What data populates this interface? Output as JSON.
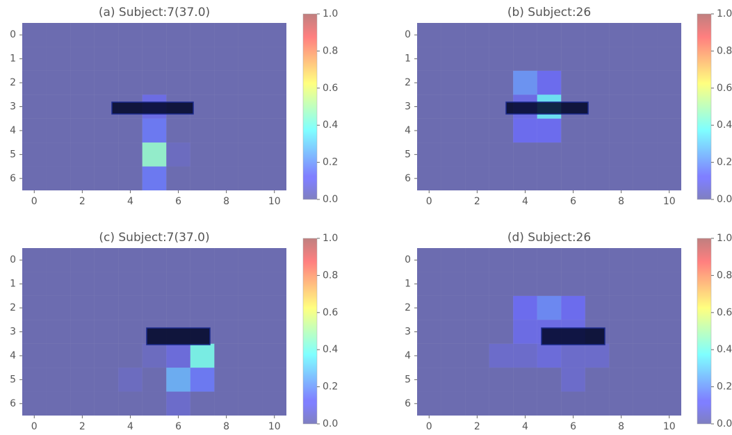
{
  "chart_data": [
    {
      "type": "heatmap",
      "title": "(a) Subject:7(37.0)",
      "xlim": [
        -0.5,
        10.5
      ],
      "ylim": [
        6.5,
        -0.5
      ],
      "xticks": [
        0,
        2,
        4,
        6,
        8,
        10
      ],
      "yticks": [
        0,
        1,
        2,
        3,
        4,
        5,
        6
      ],
      "clim": [
        0,
        1
      ],
      "cticks": [
        {
          "value": 0,
          "label": "0.0"
        },
        0.2,
        0.4,
        0.6,
        0.8,
        {
          "value": 1,
          "label": "1.0"
        }
      ],
      "colormap": "jet",
      "values": [
        [
          0,
          0,
          0,
          0,
          0,
          0,
          0,
          0,
          0,
          0,
          0
        ],
        [
          0,
          0,
          0,
          0,
          0,
          0,
          0,
          0,
          0,
          0,
          0
        ],
        [
          0,
          0,
          0,
          0,
          0,
          0,
          0,
          0,
          0,
          0,
          0
        ],
        [
          0,
          0,
          0,
          0,
          0,
          0.1,
          0,
          0,
          0,
          0,
          0
        ],
        [
          0,
          0,
          0,
          0,
          0,
          0.15,
          0,
          0,
          0,
          0,
          0
        ],
        [
          0,
          0,
          0,
          0,
          0,
          0.45,
          0.03,
          0,
          0,
          0,
          0
        ],
        [
          0,
          0,
          0,
          0,
          0,
          0.15,
          0,
          0,
          0,
          0,
          0
        ]
      ]
    },
    {
      "type": "heatmap",
      "title": "(b) Subject:26",
      "xlim": [
        -0.5,
        10.5
      ],
      "ylim": [
        6.5,
        -0.5
      ],
      "xticks": [
        0,
        2,
        4,
        6,
        8,
        10
      ],
      "yticks": [
        0,
        1,
        2,
        3,
        4,
        5,
        6
      ],
      "clim": [
        0,
        1
      ],
      "cticks": [
        {
          "value": 0,
          "label": "0.0"
        },
        0.2,
        0.4,
        0.6,
        0.8,
        {
          "value": 1,
          "label": "1.0"
        }
      ],
      "colormap": "jet",
      "values": [
        [
          0,
          0,
          0,
          0,
          0,
          0,
          0,
          0,
          0,
          0,
          0
        ],
        [
          0,
          0,
          0,
          0,
          0,
          0,
          0,
          0,
          0,
          0,
          0
        ],
        [
          0,
          0,
          0,
          0,
          0.2,
          0.12,
          0,
          0,
          0,
          0,
          0
        ],
        [
          0,
          0,
          0,
          0,
          0.1,
          0.35,
          0,
          0,
          0,
          0,
          0
        ],
        [
          0,
          0,
          0,
          0,
          0.12,
          0.12,
          0,
          0,
          0,
          0,
          0
        ],
        [
          0,
          0,
          0,
          0,
          0,
          0,
          0,
          0,
          0,
          0,
          0
        ],
        [
          0,
          0,
          0,
          0,
          0,
          0,
          0,
          0,
          0,
          0,
          0
        ]
      ]
    },
    {
      "type": "heatmap",
      "title": "(c) Subject:7(37.0)",
      "xlim": [
        -0.5,
        10.5
      ],
      "ylim": [
        6.5,
        -0.5
      ],
      "xticks": [
        0,
        2,
        4,
        6,
        8,
        10
      ],
      "yticks": [
        0,
        1,
        2,
        3,
        4,
        5,
        6
      ],
      "clim": [
        0,
        1
      ],
      "cticks": [
        {
          "value": 0,
          "label": "0.0"
        },
        0.2,
        0.4,
        0.6,
        0.8,
        {
          "value": 1,
          "label": "1.0"
        }
      ],
      "colormap": "jet",
      "values": [
        [
          0,
          0,
          0,
          0,
          0,
          0,
          0,
          0,
          0,
          0,
          0
        ],
        [
          0,
          0,
          0,
          0,
          0,
          0,
          0,
          0,
          0,
          0,
          0
        ],
        [
          0,
          0,
          0,
          0,
          0,
          0,
          0,
          0,
          0,
          0,
          0
        ],
        [
          0,
          0,
          0,
          0,
          0,
          0,
          0,
          0,
          0,
          0,
          0
        ],
        [
          0,
          0,
          0,
          0,
          0,
          0.03,
          0.08,
          0.4,
          0,
          0,
          0
        ],
        [
          0,
          0,
          0,
          0,
          0.03,
          0,
          0.25,
          0.15,
          0,
          0,
          0
        ],
        [
          0,
          0,
          0,
          0,
          0,
          0,
          0.05,
          0,
          0,
          0,
          0
        ]
      ]
    },
    {
      "type": "heatmap",
      "title": "(d) Subject:26",
      "xlim": [
        -0.5,
        10.5
      ],
      "ylim": [
        6.5,
        -0.5
      ],
      "xticks": [
        0,
        2,
        4,
        6,
        8,
        10
      ],
      "yticks": [
        0,
        1,
        2,
        3,
        4,
        5,
        6
      ],
      "clim": [
        0,
        1
      ],
      "cticks": [
        {
          "value": 0,
          "label": "0.0"
        },
        0.2,
        0.4,
        0.6,
        0.8,
        {
          "value": 1,
          "label": "1.0"
        }
      ],
      "colormap": "jet",
      "values": [
        [
          0,
          0,
          0,
          0,
          0,
          0,
          0,
          0,
          0,
          0,
          0
        ],
        [
          0,
          0,
          0,
          0,
          0,
          0,
          0,
          0,
          0,
          0,
          0
        ],
        [
          0,
          0,
          0,
          0,
          0.12,
          0.18,
          0.12,
          0,
          0,
          0,
          0
        ],
        [
          0,
          0,
          0,
          0,
          0.1,
          0.1,
          0.1,
          0,
          0,
          0,
          0
        ],
        [
          0,
          0,
          0,
          0.05,
          0.05,
          0.08,
          0.05,
          0.05,
          0,
          0,
          0
        ],
        [
          0,
          0,
          0,
          0,
          0,
          0,
          0.05,
          0,
          0,
          0,
          0
        ],
        [
          0,
          0,
          0,
          0,
          0,
          0,
          0,
          0,
          0,
          0,
          0
        ]
      ]
    }
  ]
}
